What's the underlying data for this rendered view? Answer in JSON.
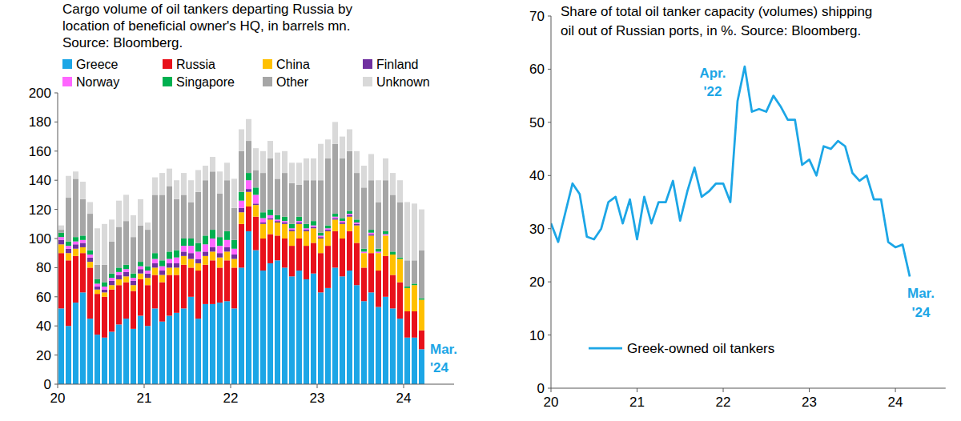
{
  "chart_data": [
    {
      "type": "bar",
      "title": "Cargo volume of oil tankers departing Russia by\nlocation of beneficial owner's HQ, in barrels mn.\nSource: Bloomberg.",
      "stacked": true,
      "legend": "top",
      "grid": false,
      "categories": [
        "20",
        null,
        null,
        null,
        null,
        null,
        null,
        null,
        null,
        null,
        null,
        null,
        "21",
        null,
        null,
        null,
        null,
        null,
        null,
        null,
        null,
        null,
        null,
        null,
        "22",
        null,
        null,
        null,
        null,
        null,
        null,
        null,
        null,
        null,
        null,
        null,
        "23",
        null,
        null,
        null,
        null,
        null,
        null,
        null,
        null,
        null,
        null,
        null,
        "24",
        null,
        null
      ],
      "ylim": [
        0,
        200
      ],
      "yticks": [
        0,
        20,
        40,
        60,
        80,
        100,
        120,
        140,
        160,
        180,
        200
      ],
      "series": [
        {
          "name": "Greece",
          "color": "#1ca6e6",
          "values": [
            52,
            40,
            56,
            63,
            45,
            34,
            32,
            36,
            41,
            45,
            38,
            47,
            40,
            52,
            43,
            47,
            49,
            52,
            60,
            45,
            55,
            55,
            56,
            57,
            52,
            80,
            105,
            92,
            78,
            83,
            85,
            80,
            74,
            78,
            72,
            76,
            63,
            66,
            80,
            74,
            78,
            68,
            57,
            63,
            53,
            60,
            52,
            45,
            32,
            32,
            24
          ]
        },
        {
          "name": "Russia",
          "color": "#e8111b",
          "values": [
            38,
            45,
            32,
            27,
            35,
            28,
            28,
            29,
            27,
            25,
            26,
            25,
            28,
            23,
            27,
            28,
            26,
            30,
            20,
            33,
            27,
            30,
            24,
            28,
            28,
            30,
            17,
            23,
            22,
            20,
            17,
            20,
            21,
            22,
            23,
            21,
            27,
            29,
            25,
            26,
            27,
            29,
            23,
            27,
            25,
            28,
            23,
            25,
            18,
            18,
            13
          ]
        },
        {
          "name": "China",
          "color": "#ffc000",
          "values": [
            6,
            5,
            5,
            4,
            4,
            3,
            3,
            3,
            4,
            4,
            4,
            4,
            5,
            5,
            5,
            5,
            5,
            6,
            6,
            5,
            6,
            6,
            7,
            6,
            6,
            8,
            10,
            8,
            10,
            10,
            9,
            10,
            10,
            10,
            10,
            10,
            10,
            10,
            8,
            10,
            10,
            12,
            10,
            12,
            12,
            14,
            14,
            16,
            16,
            18,
            21
          ]
        },
        {
          "name": "Finland",
          "color": "#7030a0",
          "values": [
            3,
            3,
            3,
            3,
            3,
            2,
            2,
            3,
            3,
            3,
            3,
            3,
            3,
            3,
            3,
            3,
            3,
            3,
            4,
            3,
            3,
            3,
            3,
            3,
            3,
            3,
            2,
            1,
            1,
            1,
            1,
            1,
            1,
            1,
            1,
            1,
            1,
            1,
            1,
            1,
            1,
            1,
            0,
            1,
            0,
            0,
            0,
            0,
            0,
            0,
            0
          ]
        },
        {
          "name": "Norway",
          "color": "#ff66ff",
          "values": [
            2,
            2,
            2,
            2,
            2,
            2,
            2,
            2,
            2,
            2,
            2,
            2,
            2,
            3,
            3,
            3,
            4,
            4,
            5,
            5,
            5,
            6,
            5,
            5,
            4,
            5,
            6,
            6,
            3,
            2,
            1,
            1,
            1,
            1,
            1,
            1,
            1,
            1,
            1,
            1,
            1,
            1,
            1,
            1,
            1,
            1,
            0,
            0,
            0,
            0,
            0
          ]
        },
        {
          "name": "Singapore",
          "color": "#00b050",
          "values": [
            3,
            3,
            3,
            3,
            3,
            3,
            3,
            3,
            3,
            3,
            3,
            3,
            3,
            4,
            4,
            5,
            5,
            5,
            5,
            6,
            6,
            6,
            6,
            6,
            6,
            6,
            5,
            5,
            4,
            4,
            3,
            3,
            3,
            3,
            3,
            3,
            2,
            2,
            2,
            2,
            2,
            2,
            2,
            2,
            2,
            2,
            2,
            1,
            1,
            1,
            1
          ]
        },
        {
          "name": "Other",
          "color": "#a6a6a6",
          "values": [
            2,
            30,
            40,
            25,
            25,
            10,
            12,
            22,
            28,
            30,
            25,
            25,
            25,
            40,
            45,
            45,
            35,
            30,
            25,
            35,
            38,
            40,
            30,
            35,
            22,
            28,
            22,
            12,
            27,
            35,
            25,
            30,
            28,
            22,
            30,
            28,
            36,
            46,
            48,
            41,
            41,
            32,
            42,
            34,
            32,
            35,
            39,
            38,
            18,
            16,
            33
          ]
        },
        {
          "name": "Unknown",
          "color": "#d9d9d9",
          "values": [
            3,
            15,
            5,
            12,
            8,
            25,
            28,
            15,
            18,
            18,
            15,
            18,
            5,
            12,
            15,
            12,
            13,
            15,
            15,
            15,
            10,
            10,
            15,
            12,
            20,
            15,
            15,
            15,
            15,
            12,
            18,
            15,
            14,
            15,
            15,
            15,
            25,
            13,
            15,
            15,
            15,
            15,
            15,
            18,
            15,
            15,
            15,
            15,
            40,
            39,
            28
          ]
        }
      ],
      "annotations": [
        {
          "text": "Mar.\n'24"
        }
      ]
    },
    {
      "type": "line",
      "title": "Share of total oil tanker capacity (volumes) shipping\noil out of Russian ports, in %. Source: Bloomberg.",
      "legend": "lower left",
      "grid": false,
      "categories": [
        "20",
        null,
        null,
        null,
        null,
        null,
        null,
        null,
        null,
        null,
        null,
        null,
        "21",
        null,
        null,
        null,
        null,
        null,
        null,
        null,
        null,
        null,
        null,
        null,
        "22",
        null,
        null,
        null,
        null,
        null,
        null,
        null,
        null,
        null,
        null,
        null,
        "23",
        null,
        null,
        null,
        null,
        null,
        null,
        null,
        null,
        null,
        null,
        null,
        "24",
        null,
        null
      ],
      "ylim": [
        0,
        70
      ],
      "yticks": [
        0,
        10,
        20,
        30,
        40,
        50,
        60,
        70
      ],
      "series": [
        {
          "name": "Greek-owned oil tankers",
          "color": "#1ca6e6",
          "values": [
            31,
            27.5,
            33,
            38.5,
            36.5,
            28.5,
            28,
            30,
            35,
            36,
            31,
            35.5,
            28,
            36,
            31,
            35,
            35,
            39,
            31.5,
            37,
            41.5,
            36,
            37,
            38.5,
            38.5,
            35,
            54,
            60.5,
            52,
            52.5,
            52,
            55,
            53,
            50.5,
            50.5,
            42,
            43,
            40,
            45.5,
            45,
            46.5,
            45.5,
            40.5,
            39,
            40,
            35.5,
            35.5,
            27.5,
            26.5,
            27,
            21
          ]
        }
      ],
      "annotations": [
        {
          "text": "Apr.\n'22"
        },
        {
          "text": "Mar.\n'24"
        }
      ]
    }
  ]
}
